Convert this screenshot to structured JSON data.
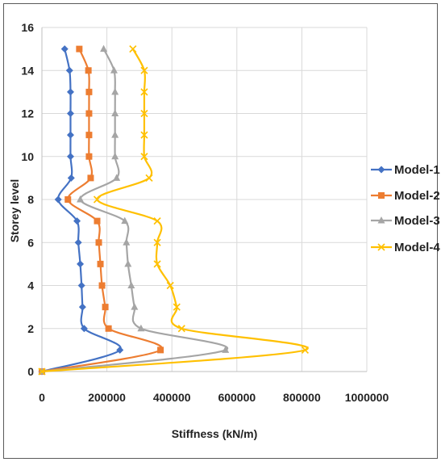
{
  "chart_data": {
    "type": "line",
    "title": "",
    "xlabel": "Stiffness (kN/m)",
    "ylabel": "Storey level",
    "xlim": [
      0,
      1000000
    ],
    "ylim": [
      0,
      16
    ],
    "xticks": [
      "0",
      "200000",
      "400000",
      "600000",
      "800000",
      "1000000"
    ],
    "yticks": [
      "0",
      "2",
      "4",
      "6",
      "8",
      "10",
      "12",
      "14",
      "16"
    ],
    "grid": "horizontal-and-vertical",
    "legend_position": "right",
    "series": [
      {
        "name": "Model-1",
        "color": "#4472C4",
        "marker": "diamond",
        "points": [
          [
            0,
            0
          ],
          [
            240000,
            1
          ],
          [
            130000,
            2
          ],
          [
            125000,
            3
          ],
          [
            122000,
            4
          ],
          [
            118000,
            5
          ],
          [
            112000,
            6
          ],
          [
            108000,
            7
          ],
          [
            50000,
            8
          ],
          [
            90000,
            9
          ],
          [
            88000,
            10
          ],
          [
            88000,
            11
          ],
          [
            88000,
            12
          ],
          [
            88000,
            13
          ],
          [
            85000,
            14
          ],
          [
            70000,
            15
          ]
        ]
      },
      {
        "name": "Model-2",
        "color": "#ED7D31",
        "marker": "square",
        "points": [
          [
            0,
            0
          ],
          [
            365000,
            1
          ],
          [
            205000,
            2
          ],
          [
            195000,
            3
          ],
          [
            185000,
            4
          ],
          [
            180000,
            5
          ],
          [
            175000,
            6
          ],
          [
            170000,
            7
          ],
          [
            80000,
            8
          ],
          [
            150000,
            9
          ],
          [
            145000,
            10
          ],
          [
            145000,
            11
          ],
          [
            145000,
            12
          ],
          [
            145000,
            13
          ],
          [
            143000,
            14
          ],
          [
            115000,
            15
          ]
        ]
      },
      {
        "name": "Model-3",
        "color": "#A5A5A5",
        "marker": "triangle",
        "points": [
          [
            0,
            0
          ],
          [
            565000,
            1
          ],
          [
            305000,
            2
          ],
          [
            285000,
            3
          ],
          [
            275000,
            4
          ],
          [
            265000,
            5
          ],
          [
            260000,
            6
          ],
          [
            255000,
            7
          ],
          [
            118000,
            8
          ],
          [
            230000,
            9
          ],
          [
            225000,
            10
          ],
          [
            225000,
            11
          ],
          [
            225000,
            12
          ],
          [
            225000,
            13
          ],
          [
            222000,
            14
          ],
          [
            190000,
            15
          ]
        ]
      },
      {
        "name": "Model-4",
        "color": "#FFC000",
        "marker": "x",
        "points": [
          [
            0,
            0
          ],
          [
            810000,
            1
          ],
          [
            430000,
            2
          ],
          [
            415000,
            3
          ],
          [
            395000,
            4
          ],
          [
            355000,
            5
          ],
          [
            355000,
            6
          ],
          [
            355000,
            7
          ],
          [
            170000,
            8
          ],
          [
            330000,
            9
          ],
          [
            315000,
            10
          ],
          [
            315000,
            11
          ],
          [
            315000,
            12
          ],
          [
            315000,
            13
          ],
          [
            315000,
            14
          ],
          [
            280000,
            15
          ]
        ]
      }
    ]
  }
}
